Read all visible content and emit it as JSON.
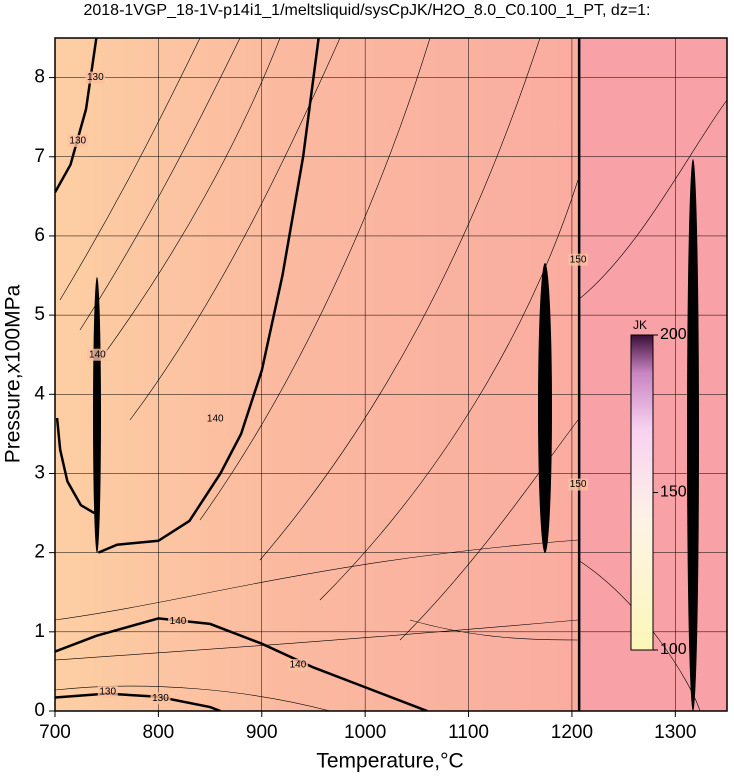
{
  "chart_data": {
    "type": "contour",
    "title": "2018-1VGP_18-1V-p14i1_1/meltsliquid/sysCpJK/H2O_8.0_C0.100_1_PT, dz=1:",
    "x_label": "Temperature,°C",
    "y_label": "Pressure,x100MPa",
    "xlim": [
      700,
      1350
    ],
    "ylim": [
      0,
      8.5
    ],
    "xticks": [
      700,
      800,
      900,
      1000,
      1100,
      1200,
      1300
    ],
    "yticks": [
      0,
      1,
      2,
      3,
      4,
      5,
      6,
      7,
      8
    ],
    "grid": true,
    "contours": [
      {
        "level": 140,
        "x": [
          742,
          760,
          800,
          830,
          860,
          880,
          900,
          920,
          940,
          955
        ],
        "y": [
          2.0,
          2.1,
          2.15,
          2.4,
          3.0,
          3.5,
          4.3,
          5.5,
          7.0,
          8.5
        ]
      },
      {
        "level": 140,
        "x": [
          738,
          725,
          712,
          705,
          702
        ],
        "y": [
          2.5,
          2.6,
          2.9,
          3.3,
          3.7
        ]
      },
      {
        "level": 130,
        "x": [
          700,
          715,
          730,
          740
        ],
        "y": [
          6.55,
          6.9,
          7.6,
          8.5
        ]
      },
      {
        "level": 140,
        "x": [
          700,
          740,
          800,
          850,
          900,
          950,
          1000,
          1050,
          1060
        ],
        "y": [
          0.75,
          0.95,
          1.17,
          1.1,
          0.85,
          0.55,
          0.3,
          0.05,
          0
        ]
      },
      {
        "level": 130,
        "x": [
          700,
          750,
          800,
          850,
          860
        ],
        "y": [
          0.17,
          0.22,
          0.18,
          0.05,
          0
        ]
      },
      {
        "level": 150,
        "x": [
          1207,
          1207
        ],
        "y": [
          0,
          8.5
        ]
      }
    ],
    "contour_labels": [
      {
        "text": "130",
        "x": 739,
        "y": 8.0
      },
      {
        "text": "130",
        "x": 722,
        "y": 7.2
      },
      {
        "text": "140",
        "x": 741,
        "y": 4.5
      },
      {
        "text": "140",
        "x": 855,
        "y": 3.69
      },
      {
        "text": "140",
        "x": 819,
        "y": 1.13
      },
      {
        "text": "140",
        "x": 935,
        "y": 0.58
      },
      {
        "text": "130",
        "x": 751,
        "y": 0.24
      },
      {
        "text": "130",
        "x": 802,
        "y": 0.16
      },
      {
        "text": "150",
        "x": 1206,
        "y": 5.7
      },
      {
        "text": "150",
        "x": 1206,
        "y": 2.86
      }
    ],
    "colorbar": {
      "label": "JK",
      "lim": [
        100,
        200
      ],
      "ticks": [
        100,
        150,
        200
      ]
    }
  }
}
